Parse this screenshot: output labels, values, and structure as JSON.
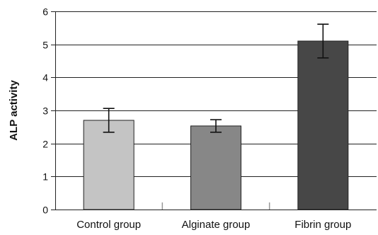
{
  "chart_data": {
    "type": "bar",
    "categories": [
      "Control group",
      "Alginate group",
      "Fibrin group"
    ],
    "values": [
      2.7,
      2.53,
      5.1
    ],
    "error": [
      0.36,
      0.19,
      0.51
    ],
    "bar_colors": [
      "#c4c4c4",
      "#878787",
      "#474747"
    ],
    "ylabel": "ALP activity",
    "xlabel": "",
    "ylim": [
      0,
      6
    ],
    "yticks": [
      0,
      1,
      2,
      3,
      4,
      5,
      6
    ],
    "grid": true
  }
}
